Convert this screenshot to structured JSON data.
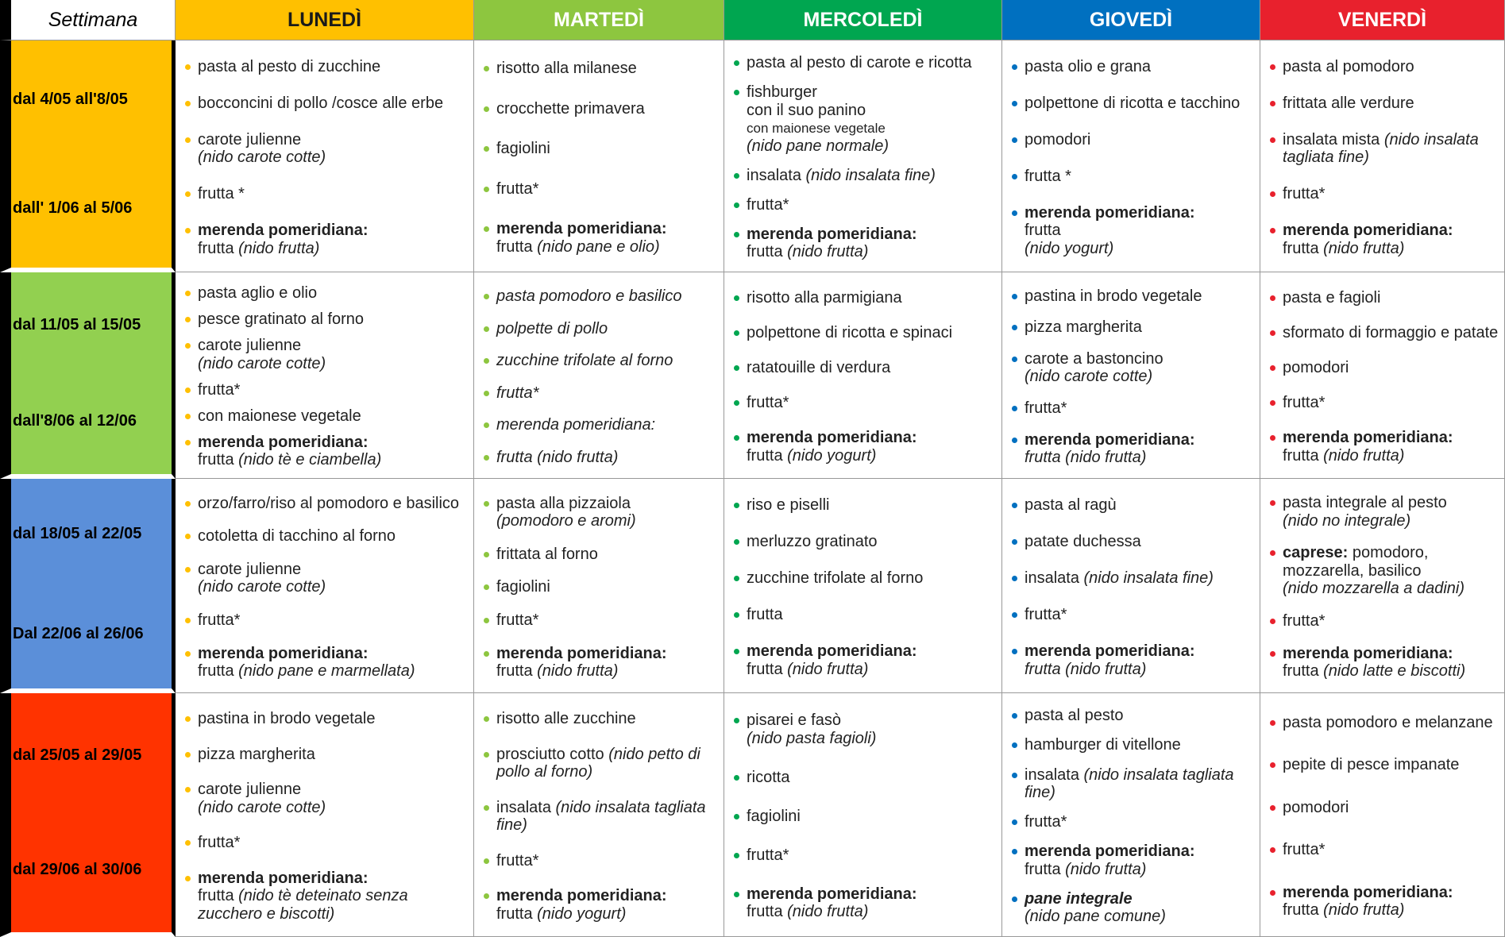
{
  "table": {
    "header": [
      {
        "text": "Settimana",
        "color": "#ffffff",
        "text_color": "#000000"
      },
      {
        "text": "LUNEDÌ",
        "color": "#ffc000",
        "text_color": "#1a1a1a"
      },
      {
        "text": "MARTEDÌ",
        "color": "#8dc63f",
        "text_color": "#ffffff"
      },
      {
        "text": "MERCOLEDÌ",
        "color": "#00a650",
        "text_color": "#ffffff"
      },
      {
        "text": "GIOVEDÌ",
        "color": "#0070c0",
        "text_color": "#ffffff"
      },
      {
        "text": "VENERDÌ",
        "color": "#e8212d",
        "text_color": "#ffffff"
      }
    ],
    "rows": [
      {
        "color": "#ffc000",
        "week": [
          "dal 4/05 all'8/05",
          "dall' 1/06 al 5/06"
        ],
        "days": [
          [
            [
              {
                "text": "pasta al pesto di zucchine"
              }
            ],
            [
              {
                "text": "bocconcini di pollo /cosce alle erbe"
              }
            ],
            [
              {
                "text": "carote julienne"
              },
              {
                "text": "(nido carote cotte)",
                "style": "i",
                "newline": true
              }
            ],
            [
              {
                "text": "frutta *"
              }
            ],
            [
              {
                "text": "merenda pomeridiana:",
                "style": "b"
              },
              {
                "text": "frutta",
                "newline": true
              },
              {
                "text": "(nido frutta)",
                "style": "i"
              }
            ]
          ],
          [
            [
              {
                "text": "risotto alla milanese"
              }
            ],
            [
              {
                "text": "crocchette primavera"
              }
            ],
            [
              {
                "text": "fagiolini"
              }
            ],
            [
              {
                "text": "frutta*"
              }
            ],
            [
              {
                "text": "merenda pomeridiana:",
                "style": "b"
              },
              {
                "text": "frutta",
                "newline": true
              },
              {
                "text": "(nido pane e olio)",
                "style": "i"
              }
            ]
          ],
          [
            [
              {
                "text": "pasta al pesto di carote e ricotta"
              }
            ],
            [
              {
                "text": "fishburger"
              },
              {
                "text": "con il suo panino",
                "newline": true
              },
              {
                "text": "con maionese vegetale",
                "style": "s",
                "newline": true
              },
              {
                "text": "(nido pane normale)",
                "style": "i",
                "newline": true
              }
            ],
            [
              {
                "text": "insalata"
              },
              {
                "text": "(nido insalata fine)",
                "style": "i"
              }
            ],
            [
              {
                "text": "frutta*"
              }
            ],
            [
              {
                "text": "merenda pomeridiana:",
                "style": "b"
              },
              {
                "text": "frutta",
                "newline": true
              },
              {
                "text": "(nido frutta)",
                "style": "i"
              }
            ]
          ],
          [
            [
              {
                "text": "pasta olio e grana"
              }
            ],
            [
              {
                "text": "polpettone di ricotta e tacchino"
              }
            ],
            [
              {
                "text": "pomodori"
              }
            ],
            [
              {
                "text": "frutta *"
              }
            ],
            [
              {
                "text": "merenda pomeridiana:",
                "style": "b"
              },
              {
                "text": "frutta",
                "newline": true
              },
              {
                "text": "(nido yogurt)",
                "style": "i",
                "newline": true
              }
            ]
          ],
          [
            [
              {
                "text": "pasta al pomodoro"
              }
            ],
            [
              {
                "text": "frittata alle verdure"
              }
            ],
            [
              {
                "text": "insalata mista"
              },
              {
                "text": "(nido insalata tagliata fine)",
                "style": "i"
              }
            ],
            [
              {
                "text": "frutta*"
              }
            ],
            [
              {
                "text": "merenda pomeridiana:",
                "style": "b"
              },
              {
                "text": "frutta",
                "newline": true
              },
              {
                "text": "(nido frutta)",
                "style": "i"
              }
            ]
          ]
        ]
      },
      {
        "color": "#92d050",
        "week": [
          "dal 11/05 al 15/05",
          "dall'8/06 al 12/06"
        ],
        "days": [
          [
            [
              {
                "text": "pasta aglio e olio"
              }
            ],
            [
              {
                "text": "pesce gratinato al forno"
              }
            ],
            [
              {
                "text": "carote julienne"
              },
              {
                "text": "(nido carote cotte)",
                "style": "i",
                "newline": true
              }
            ],
            [
              {
                "text": "frutta*"
              }
            ],
            [
              {
                "text": "con maionese vegetale"
              }
            ],
            [
              {
                "text": "merenda pomeridiana:",
                "style": "b"
              },
              {
                "text": "frutta",
                "newline": true
              },
              {
                "text": "(nido tè e ciambella)",
                "style": "i"
              }
            ]
          ],
          [
            [
              {
                "text": "pasta pomodoro e basilico",
                "style": "i"
              }
            ],
            [
              {
                "text": "polpette di pollo",
                "style": "i"
              }
            ],
            [
              {
                "text": "zucchine trifolate al forno",
                "style": "i"
              }
            ],
            [
              {
                "text": "frutta*",
                "style": "i"
              }
            ],
            [
              {
                "text": "merenda pomeridiana:",
                "style": "i"
              }
            ],
            [
              {
                "text": "frutta (nido frutta)",
                "style": "i"
              }
            ]
          ],
          [
            [
              {
                "text": "risotto alla parmigiana"
              }
            ],
            [
              {
                "text": "polpettone di ricotta e spinaci"
              }
            ],
            [
              {
                "text": "ratatouille di verdura"
              }
            ],
            [
              {
                "text": "frutta*"
              }
            ],
            [
              {
                "text": "merenda pomeridiana:",
                "style": "b"
              },
              {
                "text": "frutta",
                "newline": true
              },
              {
                "text": "(nido yogurt)",
                "style": "i"
              }
            ]
          ],
          [
            [
              {
                "text": "pastina in brodo vegetale"
              }
            ],
            [
              {
                "text": "pizza margherita"
              }
            ],
            [
              {
                "text": "carote a bastoncino"
              },
              {
                "text": "(nido carote cotte)",
                "style": "i",
                "newline": true
              }
            ],
            [
              {
                "text": "frutta*"
              }
            ],
            [
              {
                "text": "merenda pomeridiana:",
                "style": "b"
              },
              {
                "text": "frutta (nido frutta)",
                "style": "i",
                "newline": true
              }
            ]
          ],
          [
            [
              {
                "text": "pasta e fagioli"
              }
            ],
            [
              {
                "text": "sformato di formaggio e patate"
              }
            ],
            [
              {
                "text": "pomodori"
              }
            ],
            [
              {
                "text": "frutta*"
              }
            ],
            [
              {
                "text": "merenda pomeridiana:",
                "style": "b"
              },
              {
                "text": "frutta",
                "newline": true
              },
              {
                "text": "(nido frutta)",
                "style": "i"
              }
            ]
          ]
        ]
      },
      {
        "color": "#5b8fd9",
        "week": [
          "dal 18/05 al 22/05",
          "Dal 22/06 al 26/06"
        ],
        "days": [
          [
            [
              {
                "text": "orzo/farro/riso al pomodoro e basilico"
              }
            ],
            [
              {
                "text": "cotoletta di tacchino al forno"
              }
            ],
            [
              {
                "text": "carote julienne"
              },
              {
                "text": "(nido carote cotte)",
                "style": "i",
                "newline": true
              }
            ],
            [
              {
                "text": "frutta*"
              }
            ],
            [
              {
                "text": "merenda pomeridiana:",
                "style": "b"
              },
              {
                "text": "frutta",
                "newline": true
              },
              {
                "text": "(nido pane e marmellata)",
                "style": "i"
              }
            ]
          ],
          [
            [
              {
                "text": "pasta alla pizzaiola"
              },
              {
                "text": "(pomodoro e aromi)",
                "style": "i",
                "newline": true
              }
            ],
            [
              {
                "text": "frittata al forno"
              }
            ],
            [
              {
                "text": "fagiolini"
              }
            ],
            [
              {
                "text": "frutta*"
              }
            ],
            [
              {
                "text": "merenda pomeridiana:",
                "style": "b"
              },
              {
                "text": "frutta",
                "newline": true
              },
              {
                "text": "(nido frutta)",
                "style": "i"
              }
            ]
          ],
          [
            [
              {
                "text": "riso e piselli"
              }
            ],
            [
              {
                "text": "merluzzo gratinato"
              }
            ],
            [
              {
                "text": "zucchine trifolate al forno"
              }
            ],
            [
              {
                "text": "frutta"
              }
            ],
            [
              {
                "text": "merenda pomeridiana:",
                "style": "b"
              },
              {
                "text": "frutta",
                "newline": true
              },
              {
                "text": "(nido frutta)",
                "style": "i"
              }
            ]
          ],
          [
            [
              {
                "text": "pasta al ragù"
              }
            ],
            [
              {
                "text": "patate duchessa"
              }
            ],
            [
              {
                "text": "insalata"
              },
              {
                "text": "(nido insalata fine)",
                "style": "i"
              }
            ],
            [
              {
                "text": "frutta*"
              }
            ],
            [
              {
                "text": "merenda pomeridiana:",
                "style": "b"
              },
              {
                "text": "frutta (nido frutta)",
                "style": "i",
                "newline": true
              }
            ]
          ],
          [
            [
              {
                "text": "pasta integrale al pesto"
              },
              {
                "text": "(nido no integrale)",
                "style": "i",
                "newline": true
              }
            ],
            [
              {
                "text": "caprese:",
                "style": "b"
              },
              {
                "text": "pomodoro, mozzarella, basilico"
              },
              {
                "text": "(nido mozzarella a dadini)",
                "style": "i",
                "newline": true
              }
            ],
            [
              {
                "text": "frutta*"
              }
            ],
            [
              {
                "text": "merenda pomeridiana:",
                "style": "b"
              },
              {
                "text": "frutta",
                "newline": true
              },
              {
                "text": "(nido latte e biscotti)",
                "style": "i"
              }
            ]
          ]
        ]
      },
      {
        "color": "#ff3300",
        "week": [
          "dal 25/05 al 29/05",
          "dal 29/06 al 30/06"
        ],
        "days": [
          [
            [
              {
                "text": "pastina in brodo vegetale"
              }
            ],
            [
              {
                "text": "pizza margherita"
              }
            ],
            [
              {
                "text": "carote julienne"
              },
              {
                "text": "(nido carote cotte)",
                "style": "i",
                "newline": true
              }
            ],
            [
              {
                "text": "frutta*"
              }
            ],
            [
              {
                "text": "merenda pomeridiana:",
                "style": "b"
              },
              {
                "text": "frutta",
                "newline": true
              },
              {
                "text": "(nido tè deteinato senza zucchero e biscotti)",
                "style": "i"
              }
            ]
          ],
          [
            [
              {
                "text": "risotto alle zucchine"
              }
            ],
            [
              {
                "text": "prosciutto cotto"
              },
              {
                "text": "(nido petto di pollo al forno)",
                "style": "i"
              }
            ],
            [
              {
                "text": "insalata"
              },
              {
                "text": "(nido insalata tagliata fine)",
                "style": "i"
              }
            ],
            [
              {
                "text": "frutta*"
              }
            ],
            [
              {
                "text": "merenda pomeridiana:",
                "style": "b"
              },
              {
                "text": "frutta",
                "newline": true
              },
              {
                "text": "(nido yogurt)",
                "style": "i"
              }
            ]
          ],
          [
            [
              {
                "text": "pisarei e fasò"
              },
              {
                "text": "(nido pasta fagioli)",
                "style": "i",
                "newline": true
              }
            ],
            [
              {
                "text": "ricotta"
              }
            ],
            [
              {
                "text": "fagiolini"
              }
            ],
            [
              {
                "text": "frutta*"
              }
            ],
            [
              {
                "text": "merenda pomeridiana:",
                "style": "b"
              },
              {
                "text": "frutta",
                "newline": true
              },
              {
                "text": "(nido frutta)",
                "style": "i"
              }
            ]
          ],
          [
            [
              {
                "text": "pasta al pesto"
              }
            ],
            [
              {
                "text": "hamburger di vitellone"
              }
            ],
            [
              {
                "text": "insalata"
              },
              {
                "text": "(nido insalata tagliata fine)",
                "style": "i"
              }
            ],
            [
              {
                "text": "frutta*"
              }
            ],
            [
              {
                "text": "merenda pomeridiana:",
                "style": "b"
              },
              {
                "text": "frutta",
                "newline": true
              },
              {
                "text": "(nido frutta)",
                "style": "i"
              }
            ],
            [
              {
                "text": "pane integrale",
                "style": "bi"
              },
              {
                "text": "(nido pane comune)",
                "style": "i",
                "newline": true
              }
            ]
          ],
          [
            [
              {
                "text": "pasta pomodoro e melanzane"
              }
            ],
            [
              {
                "text": "pepite di pesce impanate"
              }
            ],
            [
              {
                "text": "pomodori"
              }
            ],
            [
              {
                "text": "frutta*"
              }
            ],
            [
              {
                "text": "merenda pomeridiana:",
                "style": "b"
              },
              {
                "text": "frutta",
                "newline": true
              },
              {
                "text": "(nido frutta)",
                "style": "i"
              }
            ]
          ]
        ]
      }
    ]
  }
}
